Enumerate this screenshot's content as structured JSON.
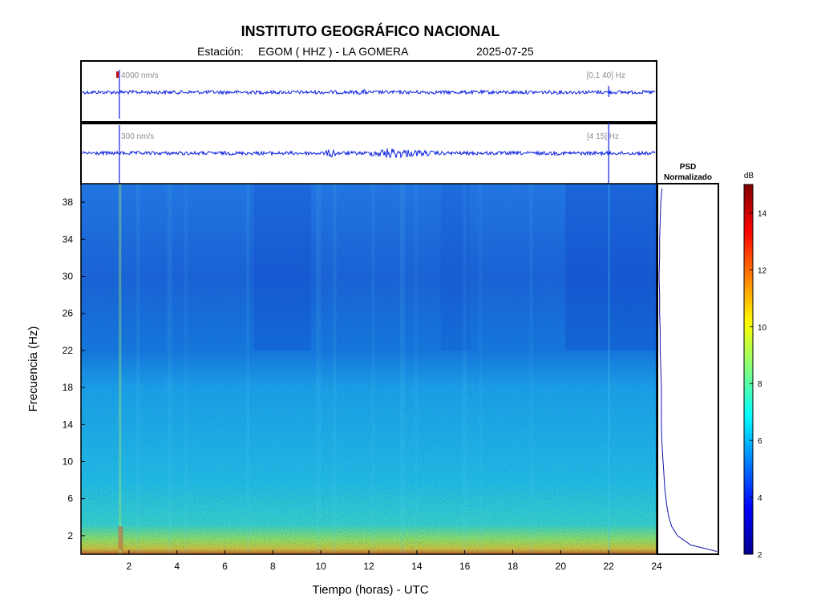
{
  "header": {
    "title": "INSTITUTO GEOGRÁFICO NACIONAL",
    "station_label": "Estación:",
    "station_value": "EGOM ( HHZ ) - LA GOMERA",
    "date": "2025-07-25"
  },
  "traces": [
    {
      "amplitude_label": "4000 nm/s",
      "band_label": "[0.1 40] Hz"
    },
    {
      "amplitude_label": "300 nm/s",
      "band_label": "[4 15] Hz"
    }
  ],
  "psd_panel": {
    "title_line1": "PSD",
    "title_line2": "Normalizado"
  },
  "colorbar": {
    "unit": "dB",
    "ticks": [
      "2",
      "4",
      "6",
      "8",
      "10",
      "12",
      "14"
    ],
    "min": 2,
    "max": 15
  },
  "chart_data": {
    "type": "heatmap",
    "title": "INSTITUTO GEOGRÁFICO NACIONAL",
    "xlabel": "Tiempo (horas) - UTC",
    "ylabel": "Frecuencia  (Hz)",
    "xlim": [
      0,
      24
    ],
    "ylim": [
      0,
      40
    ],
    "xticks": [
      2,
      4,
      6,
      8,
      10,
      12,
      14,
      16,
      18,
      20,
      22,
      24
    ],
    "yticks": [
      2,
      6,
      10,
      14,
      18,
      22,
      26,
      30,
      34,
      38
    ],
    "colormap": "jet",
    "events_utc_hours": [
      1.6,
      22.0
    ],
    "psd_normalized": {
      "frequency_hz": [
        0.3,
        1,
        2,
        3,
        4,
        5,
        6,
        7,
        8,
        9,
        10,
        12,
        14,
        16,
        18,
        20,
        22,
        24,
        26,
        28,
        30,
        32,
        34,
        36,
        38,
        39.5
      ],
      "value": [
        1.0,
        0.55,
        0.32,
        0.22,
        0.17,
        0.14,
        0.12,
        0.1,
        0.09,
        0.08,
        0.07,
        0.05,
        0.04,
        0.04,
        0.04,
        0.03,
        0.02,
        0.02,
        0.01,
        0.01,
        0.0,
        0.01,
        0.01,
        0.02,
        0.03,
        0.05
      ]
    }
  }
}
